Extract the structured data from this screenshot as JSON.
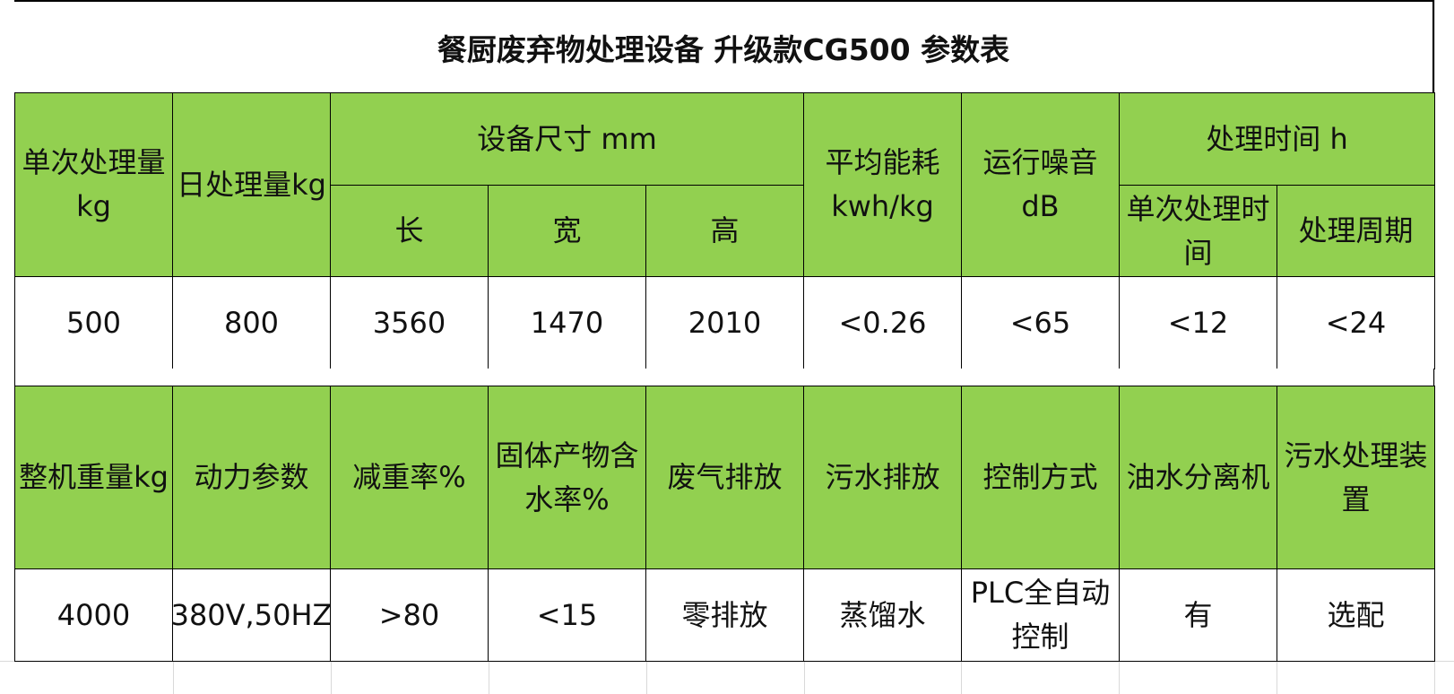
{
  "title": "餐厨废弃物处理设备 升级款CG500 参数表",
  "table1": {
    "headers": {
      "single_capacity": "单次处理量kg",
      "daily_capacity": "日处理量kg",
      "dimensions": "设备尺寸 mm",
      "length": "长",
      "width": "宽",
      "height": "高",
      "energy": "平均能耗kwh/kg",
      "noise": "运行噪音dB",
      "process_time": "处理时间 h",
      "single_time": "单次处理时间",
      "cycle": "处理周期"
    },
    "values": {
      "single_capacity": "500",
      "daily_capacity": "800",
      "length": "3560",
      "width": "1470",
      "height": "2010",
      "energy": "<0.26",
      "noise": "<65",
      "single_time": "<12",
      "cycle": "<24"
    }
  },
  "table2": {
    "headers": {
      "weight": "整机重量kg",
      "power": "动力参数",
      "reduction": "减重率%",
      "moisture": "固体产物含水率%",
      "exhaust": "废气排放",
      "sewage": "污水排放",
      "control": "控制方式",
      "oil_separator": "油水分离机",
      "sewage_device": "污水处理装置"
    },
    "values": {
      "weight": "4000",
      "power": "380V,50HZ",
      "reduction": ">80",
      "moisture": "<15",
      "exhaust": "零排放",
      "sewage": "蒸馏水",
      "control": "PLC全自动控制",
      "oil_separator": "有",
      "sewage_device": "选配"
    }
  },
  "colors": {
    "header_bg": "#92d050",
    "value_bg": "#ffffff",
    "border": "#000000",
    "gridline": "#d9d9d9"
  }
}
